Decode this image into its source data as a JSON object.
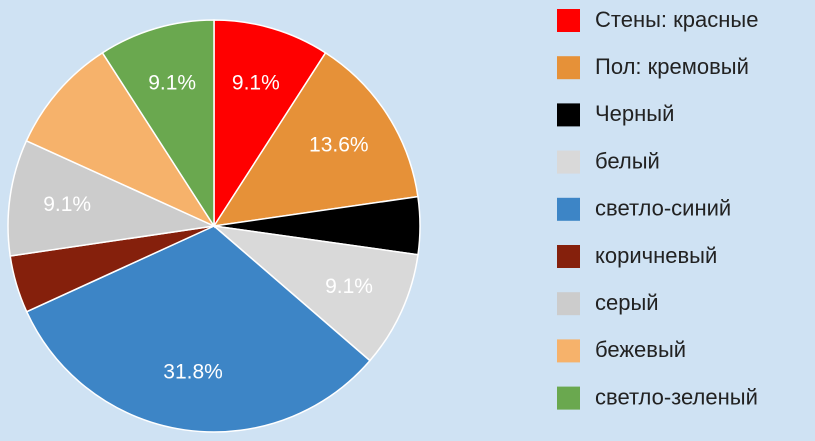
{
  "chart_data": {
    "type": "pie",
    "categories": [
      "Стены: красные",
      "Пол: кремовый",
      "Черный",
      "белый",
      "светло-синий",
      "коричневый",
      "серый",
      "бежевый",
      "светло-зеленый"
    ],
    "values": [
      9.1,
      13.6,
      4.5,
      9.1,
      31.8,
      4.5,
      9.1,
      9.1,
      9.1
    ],
    "value_labels": [
      "9.1%",
      "13.6%",
      null,
      "9.1%",
      "31.8%",
      null,
      "9.1%",
      null,
      "9.1%"
    ],
    "colors": [
      "#ff0000",
      "#e69138",
      "#000000",
      "#d9d9d9",
      "#3d85c6",
      "#85200c",
      "#cccccc",
      "#f6b26b",
      "#6aa84f"
    ],
    "legend": "right"
  }
}
